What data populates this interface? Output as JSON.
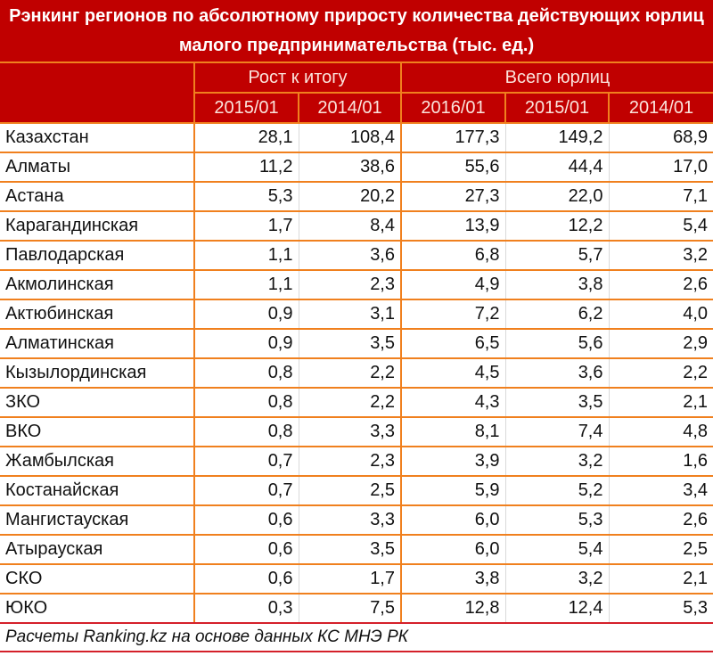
{
  "title": "Рэнкинг регионов по абсолютному приросту количества действующих юрлиц малого предпринимательства (тыс. ед.)",
  "header": {
    "group1": "Рост к итогу",
    "group2": "Всего юрлиц",
    "subcolumns": [
      "2015/01",
      "2014/01",
      "2016/01",
      "2015/01",
      "2014/01"
    ]
  },
  "rows": [
    {
      "region": "Казахстан",
      "values": [
        "28,1",
        "108,4",
        "177,3",
        "149,2",
        "68,9"
      ]
    },
    {
      "region": "Алматы",
      "values": [
        "11,2",
        "38,6",
        "55,6",
        "44,4",
        "17,0"
      ]
    },
    {
      "region": "Астана",
      "values": [
        "5,3",
        "20,2",
        "27,3",
        "22,0",
        "7,1"
      ]
    },
    {
      "region": "Карагандинская",
      "values": [
        "1,7",
        "8,4",
        "13,9",
        "12,2",
        "5,4"
      ]
    },
    {
      "region": "Павлодарская",
      "values": [
        "1,1",
        "3,6",
        "6,8",
        "5,7",
        "3,2"
      ]
    },
    {
      "region": "Акмолинская",
      "values": [
        "1,1",
        "2,3",
        "4,9",
        "3,8",
        "2,6"
      ]
    },
    {
      "region": "Актюбинская",
      "values": [
        "0,9",
        "3,1",
        "7,2",
        "6,2",
        "4,0"
      ]
    },
    {
      "region": "Алматинская",
      "values": [
        "0,9",
        "3,5",
        "6,5",
        "5,6",
        "2,9"
      ]
    },
    {
      "region": "Кызылординская",
      "values": [
        "0,8",
        "2,2",
        "4,5",
        "3,6",
        "2,2"
      ]
    },
    {
      "region": "ЗКО",
      "values": [
        "0,8",
        "2,2",
        "4,3",
        "3,5",
        "2,1"
      ]
    },
    {
      "region": "ВКО",
      "values": [
        "0,8",
        "3,3",
        "8,1",
        "7,4",
        "4,8"
      ]
    },
    {
      "region": "Жамбылская",
      "values": [
        "0,7",
        "2,3",
        "3,9",
        "3,2",
        "1,6"
      ]
    },
    {
      "region": "Костанайская",
      "values": [
        "0,7",
        "2,5",
        "5,9",
        "5,2",
        "3,4"
      ]
    },
    {
      "region": "Мангистауская",
      "values": [
        "0,6",
        "3,3",
        "6,0",
        "5,3",
        "2,6"
      ]
    },
    {
      "region": "Атырауская",
      "values": [
        "0,6",
        "3,5",
        "6,0",
        "5,4",
        "2,5"
      ]
    },
    {
      "region": "СКО",
      "values": [
        "0,6",
        "1,7",
        "3,8",
        "3,2",
        "2,1"
      ]
    },
    {
      "region": "ЮКО",
      "values": [
        "0,3",
        "7,5",
        "12,8",
        "12,4",
        "5,3"
      ]
    }
  ],
  "footer": "Расчеты Ranking.kz на основе данных КС МНЭ РК",
  "colors": {
    "header_bg": "#c00000",
    "header_text": "#fbe4dc",
    "grid_line": "#f0801e",
    "bottom_line": "#d4202a"
  }
}
